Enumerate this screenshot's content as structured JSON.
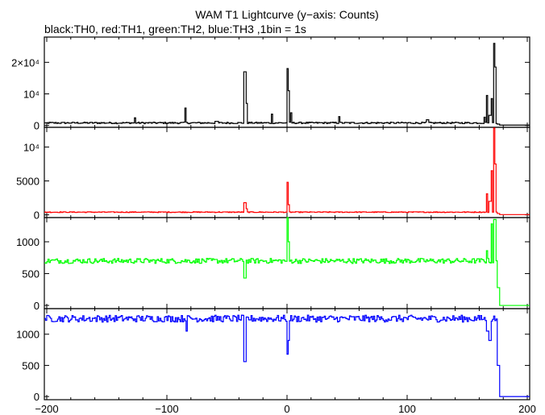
{
  "chart_data": {
    "type": "line",
    "title": "WAM T1 Lightcurve (y−axis: Counts)",
    "subtitle": "black:TH0, red:TH1, green:TH2, blue:TH3 ,1bin = 1s",
    "xlim": [
      -202,
      202
    ],
    "x_ticks": [
      -200,
      -100,
      0,
      100,
      200
    ],
    "x_tick_labels": [
      "−200",
      "−100",
      "0",
      "100",
      "200"
    ],
    "grid": false,
    "panels": [
      {
        "series_name": "TH0",
        "color": "#000000",
        "ylim": [
          -600,
          28000
        ],
        "y_ticks": [
          0,
          10000,
          20000
        ],
        "y_tick_labels": [
          "0",
          "10⁴",
          "2×10⁴"
        ],
        "baseline": 800,
        "noise": 250,
        "events": [
          [
            -205,
            -200,
            800
          ],
          [
            -127,
            -126,
            2400
          ],
          [
            -85,
            -84,
            5500
          ],
          [
            -60,
            -57,
            1300
          ],
          [
            -36,
            -34,
            17000
          ],
          [
            -34,
            -33,
            7000
          ],
          [
            -13,
            -12,
            3600
          ],
          [
            0,
            1,
            18000
          ],
          [
            1,
            2,
            11000
          ],
          [
            3,
            4,
            4000
          ],
          [
            43,
            44,
            2800
          ],
          [
            116,
            118,
            1800
          ],
          [
            164,
            165,
            2600
          ],
          [
            166,
            167,
            9500
          ],
          [
            168,
            170,
            3200
          ],
          [
            170,
            171,
            8500
          ],
          [
            172,
            173,
            26000
          ],
          [
            173,
            174,
            18500
          ]
        ],
        "end_value": 100
      },
      {
        "series_name": "TH1",
        "color": "#ff0000",
        "ylim": [
          -400,
          12900
        ],
        "y_ticks": [
          0,
          5000,
          10000
        ],
        "y_tick_labels": [
          "0",
          "5000",
          "10⁴"
        ],
        "baseline": 400,
        "noise": 60,
        "events": [
          [
            -36,
            -34,
            1800
          ],
          [
            -34,
            -33,
            900
          ],
          [
            0,
            1,
            4800
          ],
          [
            1,
            2,
            1500
          ],
          [
            166,
            167,
            3100
          ],
          [
            168,
            170,
            2000
          ],
          [
            170,
            171,
            6500
          ],
          [
            172,
            173,
            12800
          ],
          [
            173,
            174,
            7500
          ]
        ],
        "end_value": 40
      },
      {
        "series_name": "TH2",
        "color": "#00ff00",
        "ylim": [
          -50,
          1380
        ],
        "y_ticks": [
          0,
          500,
          1000
        ],
        "y_tick_labels": [
          "0",
          "500",
          "1000"
        ],
        "baseline": 700,
        "noise": 40,
        "events": [
          [
            -36,
            -34,
            430
          ],
          [
            0,
            1,
            1380
          ],
          [
            1,
            2,
            1000
          ],
          [
            166,
            167,
            860
          ],
          [
            170,
            171,
            1280
          ],
          [
            172,
            174,
            1350
          ]
        ],
        "end_value": 0
      },
      {
        "series_name": "TH3",
        "color": "#0000ff",
        "ylim": [
          -50,
          1410
        ],
        "y_ticks": [
          0,
          500,
          1000
        ],
        "y_tick_labels": [
          "0",
          "500",
          "1000"
        ],
        "baseline": 1250,
        "noise": 55,
        "events": [
          [
            -36,
            -34,
            560
          ],
          [
            -84,
            -83,
            1050
          ],
          [
            0,
            1,
            680
          ],
          [
            1,
            2,
            900
          ],
          [
            166,
            168,
            1050
          ],
          [
            168,
            170,
            900
          ]
        ],
        "end_value": 0
      }
    ]
  }
}
